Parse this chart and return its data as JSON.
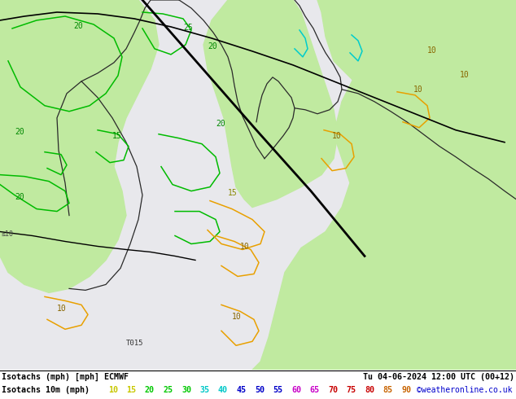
{
  "title_left": "Isotachs (mph) [mph] ECMWF",
  "title_right": "Tu 04-06-2024 12:00 UTC (00+12)",
  "legend_title": "Isotachs 10m (mph)",
  "legend_values": [
    10,
    15,
    20,
    25,
    30,
    35,
    40,
    45,
    50,
    55,
    60,
    65,
    70,
    75,
    80,
    85,
    90
  ],
  "legend_colors": [
    "#c8c800",
    "#c8c800",
    "#00c800",
    "#00c800",
    "#00c800",
    "#00c8c8",
    "#00c8c8",
    "#0000c8",
    "#0000c8",
    "#0000c8",
    "#c800c8",
    "#c800c8",
    "#c80000",
    "#c80000",
    "#c80000",
    "#c86400",
    "#c86400"
  ],
  "copyright": "©weatheronline.co.uk",
  "figsize": [
    6.34,
    4.9
  ],
  "dpi": 100,
  "sea_color": "#e8e8ec",
  "land_color": "#c0eaa0",
  "land_color2": "#b0e890",
  "contour_green": "#00bb00",
  "contour_yellow": "#c8c800",
  "contour_orange": "#e8a000",
  "contour_cyan": "#00cccc",
  "contour_black": "#000000",
  "label_green": "#008800",
  "label_yellow": "#888800",
  "bottom_bg": "#ffffff",
  "bar_line_color": "#000000"
}
